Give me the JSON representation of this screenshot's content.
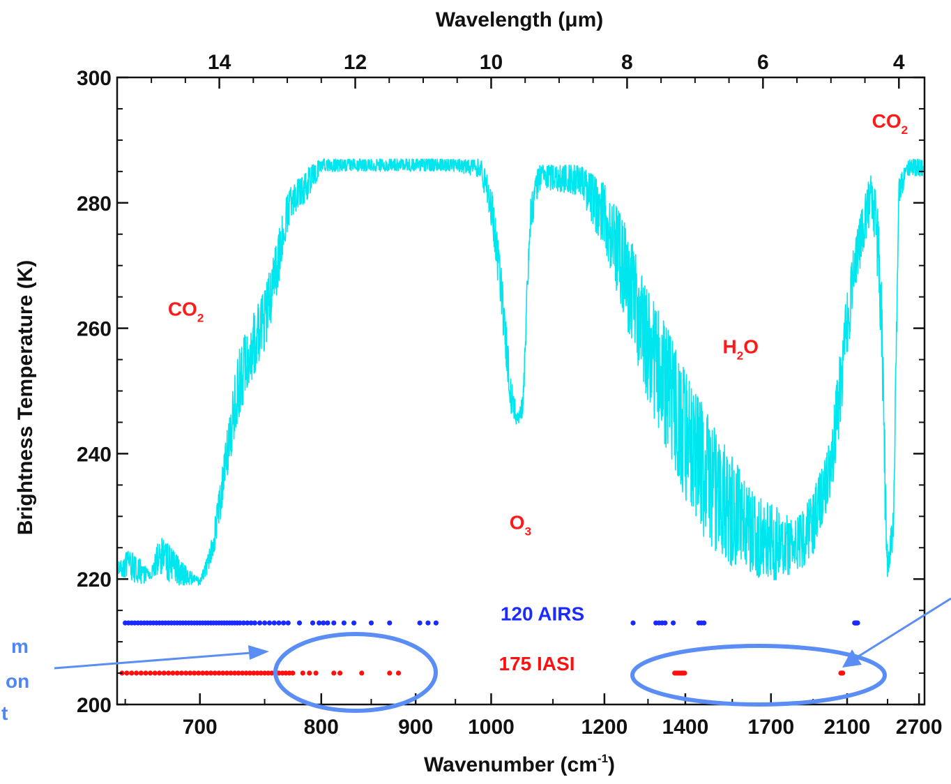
{
  "chart_data": {
    "type": "line",
    "title": "",
    "xlabel": "Wavenumber (cm",
    "xlabel_sup": "-1",
    "xlabel_end": ")",
    "x2label": "Wavelength (μm)",
    "ylabel": "Brightness Temperature (K)",
    "ylim": [
      200,
      300
    ],
    "xlim": [
      645,
      2760
    ],
    "x_scale": "reciprocal (linear in wavelength)",
    "y_ticks": [
      "200",
      "220",
      "240",
      "260",
      "280",
      "300"
    ],
    "x_ticks": [
      "700",
      "800",
      "900",
      "1000",
      "1200",
      "1400",
      "1700",
      "2100",
      "2700"
    ],
    "x2_ticks": [
      "14",
      "12",
      "10",
      "8",
      "6",
      "4"
    ],
    "grid": false,
    "spectrum_color": "#00e6ee",
    "series": [
      {
        "color": "#00e6ee",
        "style": "noisy-spectrum",
        "x": [
          648,
          652,
          660,
          666,
          672,
          680,
          690,
          700,
          706,
          712,
          718,
          724,
          730,
          740,
          750,
          760,
          770,
          780,
          790,
          800,
          850,
          900,
          950,
          985,
          1000,
          1015,
          1030,
          1042,
          1050,
          1060,
          1075,
          1100,
          1150,
          1200,
          1250,
          1300,
          1350,
          1400,
          1450,
          1500,
          1550,
          1600,
          1650,
          1700,
          1750,
          1800,
          1850,
          1900,
          1950,
          2000,
          2050,
          2100,
          2150,
          2200,
          2250,
          2300,
          2350,
          2380,
          2400,
          2450,
          2500,
          2600,
          2760
        ],
        "y": [
          223,
          225,
          223,
          221,
          227,
          225,
          222,
          220,
          224,
          231,
          240,
          250,
          257,
          262,
          266,
          274,
          282,
          284,
          286,
          287,
          287,
          287,
          287,
          287,
          283,
          270,
          252,
          246,
          251,
          280,
          286,
          286,
          286,
          283,
          276,
          266,
          260,
          253,
          248,
          243,
          240,
          235,
          233,
          232,
          231,
          229,
          231,
          234,
          238,
          243,
          255,
          266,
          274,
          279,
          284,
          285,
          270,
          240,
          223,
          232,
          284,
          287,
          287
        ],
        "floor": [
          220,
          220,
          219,
          220,
          221,
          219,
          219,
          219,
          221,
          225,
          234,
          240,
          246,
          252,
          256,
          265,
          276,
          279,
          281,
          285,
          285,
          285,
          285,
          284,
          276,
          262,
          246,
          244,
          246,
          274,
          282,
          282,
          281,
          272,
          260,
          248,
          240,
          232,
          227,
          224,
          222,
          221,
          220,
          219,
          220,
          221,
          222,
          224,
          228,
          233,
          243,
          255,
          265,
          271,
          276,
          274,
          256,
          228,
          220,
          225,
          280,
          284,
          284
        ],
        "noise_seed": 7
      },
      {
        "name": "120 AIRS",
        "type": "scatter",
        "color": "#1a2bff",
        "y": 213,
        "x": [
          650,
          652,
          654,
          656,
          658,
          660,
          662,
          664,
          666,
          668,
          670,
          672,
          674,
          676,
          678,
          680,
          682,
          684,
          686,
          688,
          690,
          692,
          694,
          696,
          698,
          700,
          702,
          704,
          706,
          708,
          710,
          712,
          714,
          716,
          718,
          720,
          722,
          724,
          726,
          728,
          730,
          733,
          736,
          739,
          742,
          746,
          750,
          754,
          758,
          762,
          766,
          770,
          780,
          792,
          798,
          802,
          806,
          812,
          822,
          832,
          850,
          870,
          905,
          915,
          925,
          1264,
          1320,
          1328,
          1336,
          1344,
          1366,
          1440,
          1448,
          1456,
          2150,
          2154,
          2158,
          2162,
          2166,
          2170
        ]
      },
      {
        "name": "175 IASI",
        "type": "scatter",
        "color": "#ff1010",
        "y": 205,
        "x": [
          648,
          651,
          654,
          657,
          660,
          663,
          666,
          669,
          672,
          675,
          678,
          681,
          684,
          687,
          690,
          693,
          696,
          699,
          702,
          705,
          708,
          711,
          714,
          717,
          720,
          723,
          726,
          729,
          732,
          735,
          738,
          741,
          744,
          747,
          750,
          753,
          756,
          759,
          762,
          765,
          768,
          771,
          774,
          783,
          789,
          795,
          812,
          818,
          840,
          870,
          880,
          1370,
          1374,
          1378,
          1382,
          1386,
          1390,
          1394,
          1398,
          2060,
          2064,
          2068,
          2072
        ]
      }
    ],
    "annotations": [
      {
        "text": "CO",
        "sub": "2",
        "x": 690,
        "y": 262
      },
      {
        "text": "O",
        "sub": "3",
        "x": 1045,
        "y": 228
      },
      {
        "text": "H",
        "sub": "2",
        "after": "O",
        "x": 1580,
        "y": 256
      },
      {
        "text": "CO",
        "sub": "2",
        "x": 2420,
        "y": 292
      }
    ],
    "legend": "inline labels, bottom-center",
    "side_notes": {
      "left_lines": [
        "m",
        "on",
        "t"
      ]
    }
  }
}
